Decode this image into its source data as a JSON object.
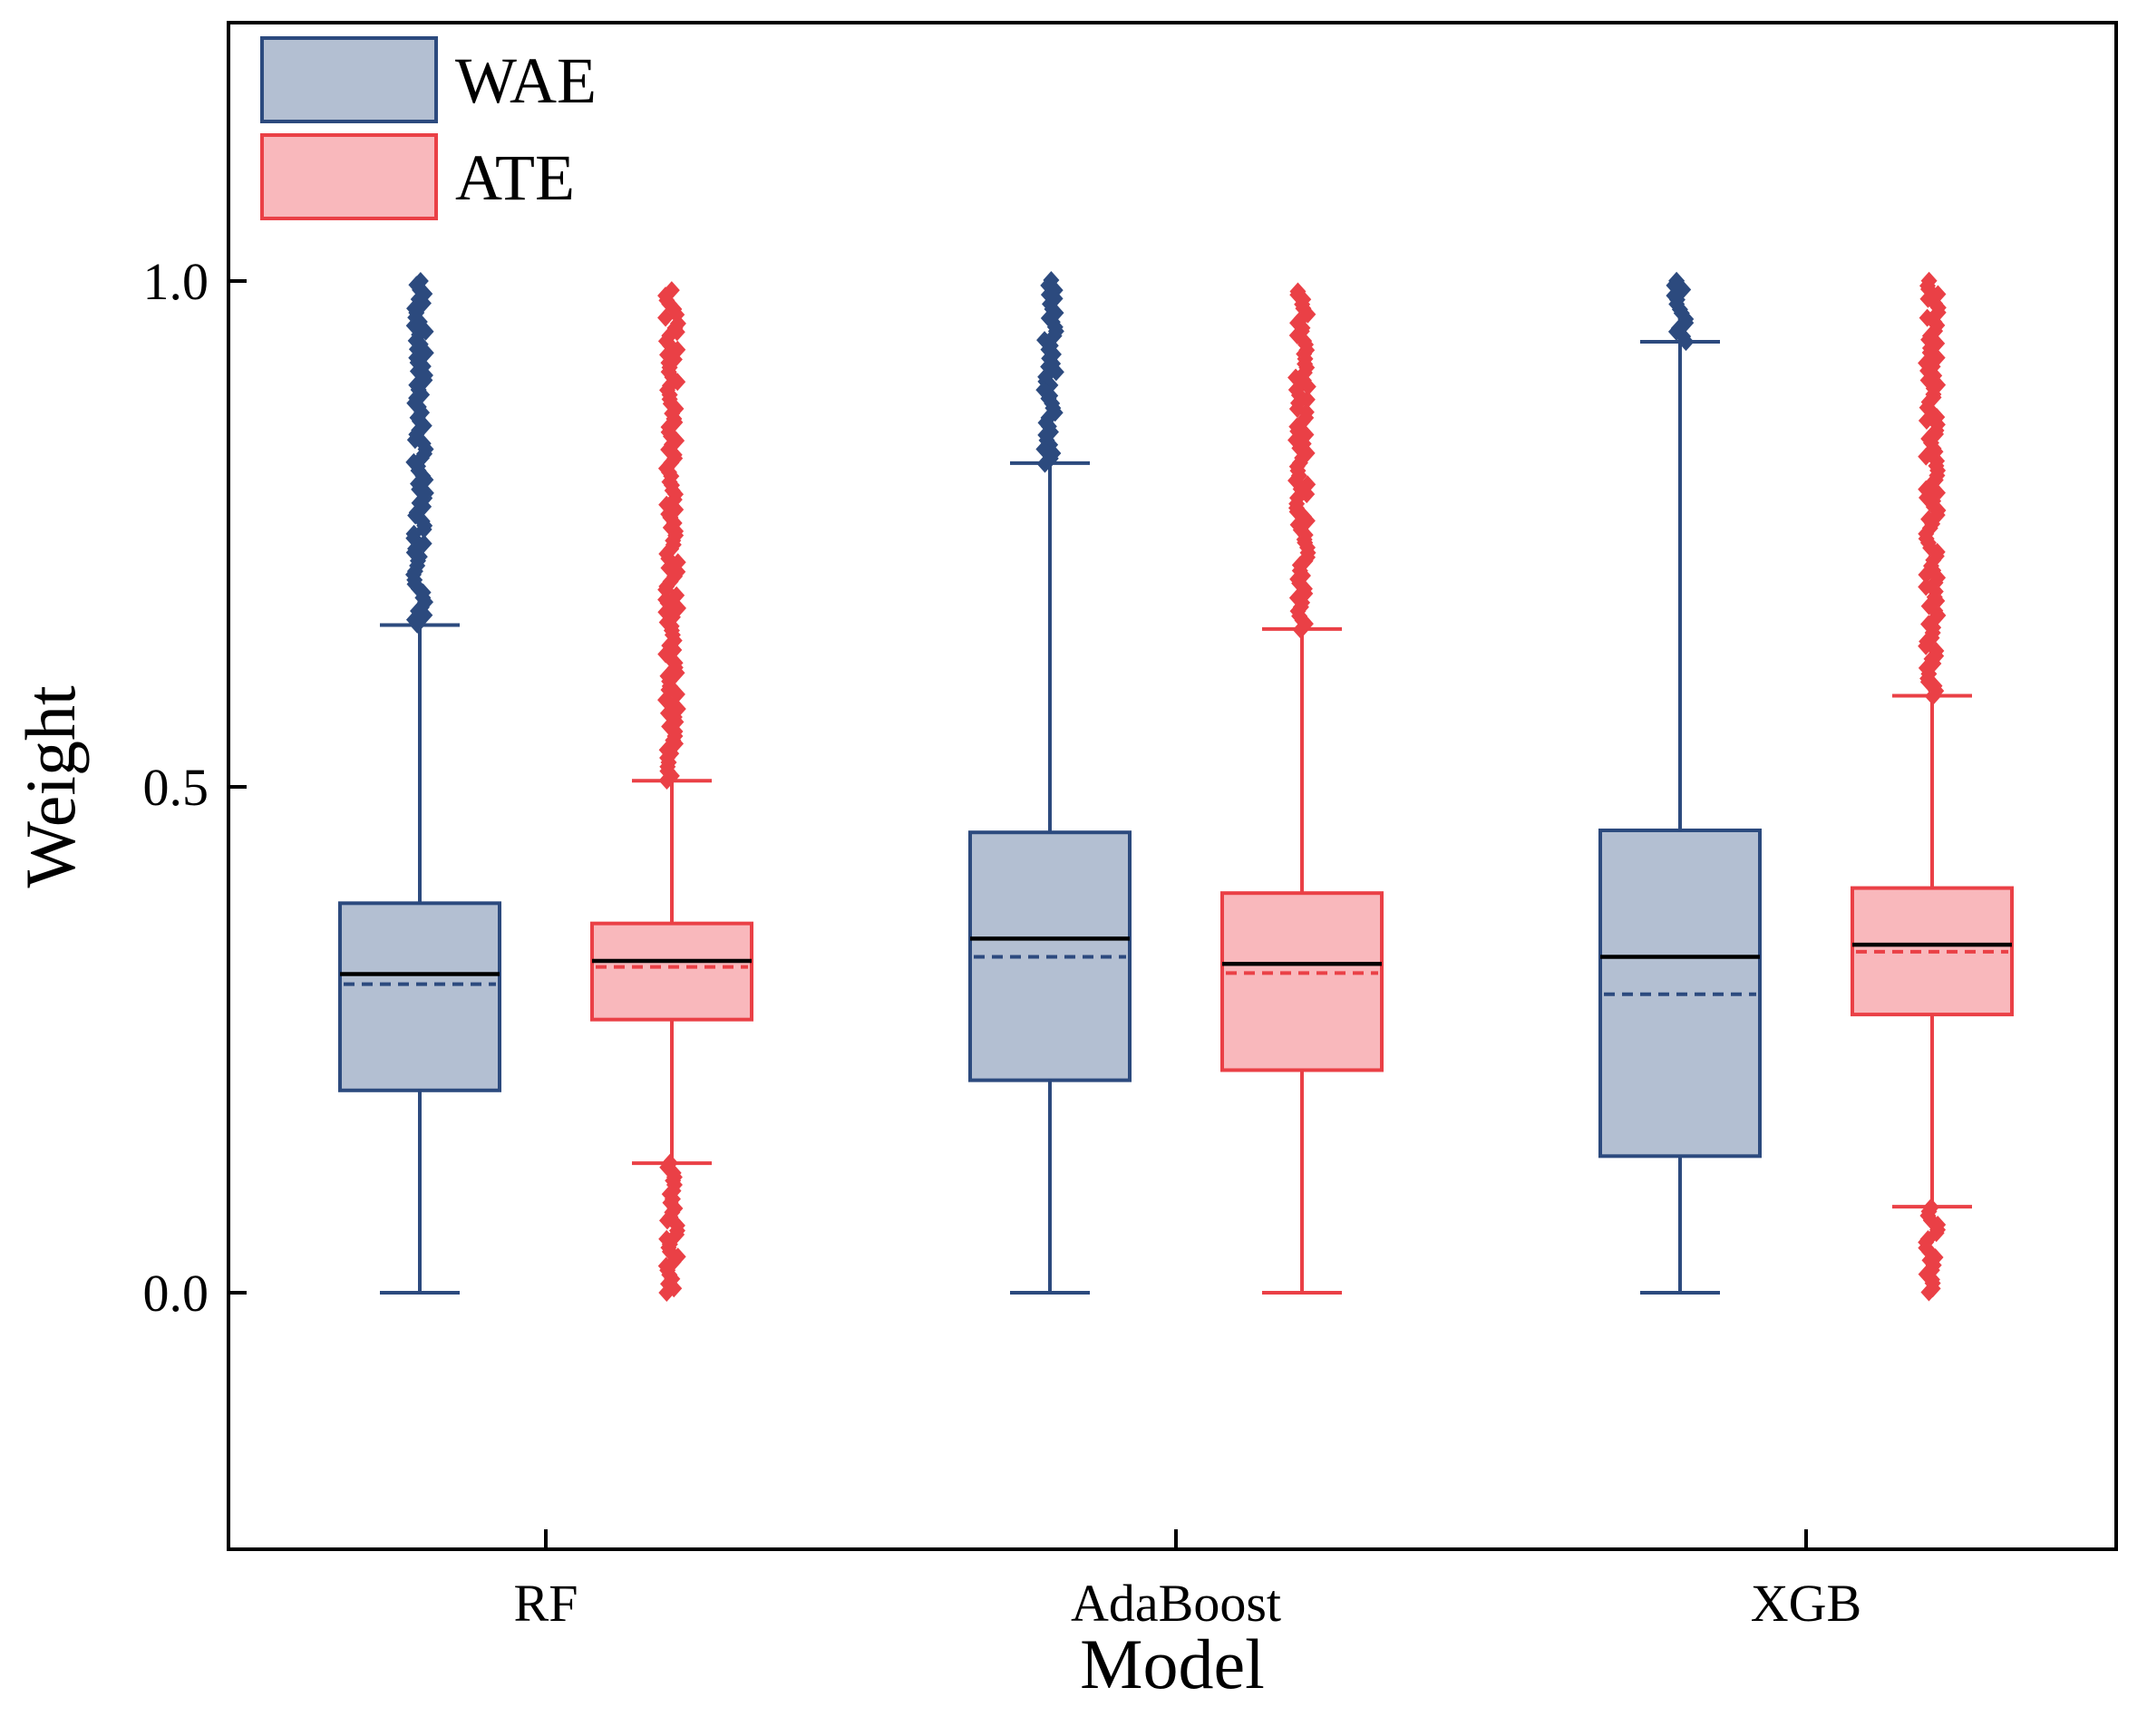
{
  "chart_data": {
    "type": "boxplot",
    "xlabel": "Model",
    "ylabel": "Weight",
    "ylim": [
      -0.25,
      1.25
    ],
    "yticks": [
      "0.0",
      "0.5",
      "1.0"
    ],
    "ytick_values": [
      0.0,
      0.5,
      1.0
    ],
    "categories": [
      "RF",
      "AdaBoost",
      "XGB"
    ],
    "legend": {
      "placement": "top-left"
    },
    "series": [
      {
        "name": "WAE",
        "fill": "#b3bfd2",
        "stroke": "#2c4a7e",
        "boxes": [
          {
            "category": "RF",
            "whisker_low": 0.0,
            "q1": 0.2,
            "median": 0.315,
            "mean": 0.305,
            "q3": 0.385,
            "whisker_high": 0.66,
            "outlier_range": [
              0.66,
              1.0
            ]
          },
          {
            "category": "AdaBoost",
            "whisker_low": 0.0,
            "q1": 0.21,
            "median": 0.35,
            "mean": 0.332,
            "q3": 0.455,
            "whisker_high": 0.82,
            "outlier_range": [
              0.82,
              1.0
            ]
          },
          {
            "category": "XGB",
            "whisker_low": 0.0,
            "q1": 0.135,
            "median": 0.332,
            "mean": 0.295,
            "q3": 0.457,
            "whisker_high": 0.94,
            "outlier_range": [
              0.94,
              1.0
            ]
          }
        ]
      },
      {
        "name": "ATE",
        "fill": "#f9b8bc",
        "stroke": "#ea4046",
        "boxes": [
          {
            "category": "RF",
            "whisker_low": 0.128,
            "q1": 0.27,
            "median": 0.328,
            "mean": 0.322,
            "q3": 0.365,
            "whisker_high": 0.506,
            "outlier_ranges": [
              [
                0.0,
                0.128
              ],
              [
                0.506,
                0.99
              ]
            ]
          },
          {
            "category": "AdaBoost",
            "whisker_low": 0.0,
            "q1": 0.22,
            "median": 0.325,
            "mean": 0.316,
            "q3": 0.395,
            "whisker_high": 0.656,
            "outlier_range": [
              0.656,
              0.99
            ]
          },
          {
            "category": "XGB",
            "whisker_low": 0.085,
            "q1": 0.275,
            "median": 0.344,
            "mean": 0.337,
            "q3": 0.4,
            "whisker_high": 0.59,
            "outlier_ranges": [
              [
                0.0,
                0.085
              ],
              [
                0.59,
                1.0
              ]
            ]
          }
        ]
      }
    ]
  }
}
